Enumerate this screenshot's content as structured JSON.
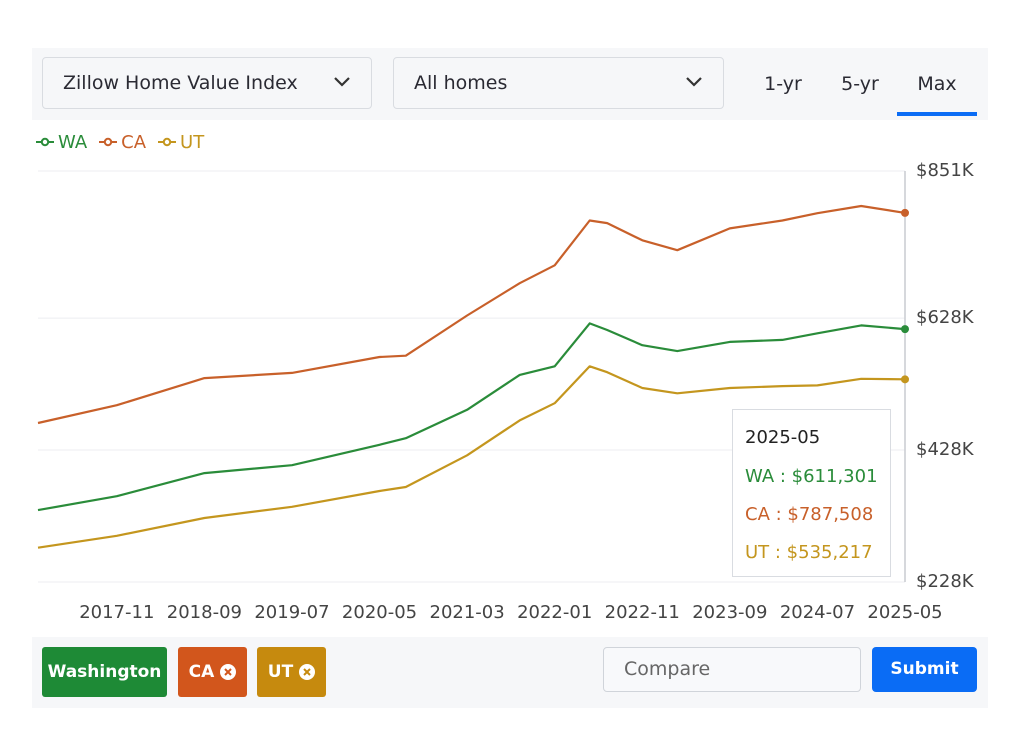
{
  "controls": {
    "metric": "Zillow Home Value Index",
    "home_type": "All homes",
    "ranges": [
      "1-yr",
      "5-yr",
      "Max"
    ],
    "active_range": "Max"
  },
  "chart_data": {
    "type": "line",
    "x": [
      "2017-02",
      "2017-11",
      "2018-09",
      "2019-07",
      "2020-05",
      "2020-08",
      "2021-03",
      "2021-09",
      "2022-01",
      "2022-05",
      "2022-07",
      "2022-11",
      "2023-03",
      "2023-09",
      "2024-03",
      "2024-07",
      "2024-12",
      "2025-05"
    ],
    "series": [
      {
        "name": "WA",
        "color": "#2a8c3a",
        "values": [
          337000,
          358000,
          393000,
          405000,
          436000,
          446000,
          489000,
          542000,
          555000,
          620000,
          610000,
          587000,
          578000,
          592000,
          595000,
          605000,
          617000,
          611301
        ]
      },
      {
        "name": "CA",
        "color": "#c8602a",
        "values": [
          469000,
          496000,
          537000,
          545000,
          569000,
          571000,
          632000,
          681000,
          708000,
          776000,
          772000,
          746000,
          731000,
          764000,
          776000,
          787000,
          798000,
          787508
        ]
      },
      {
        "name": "UT",
        "color": "#c4961e",
        "values": [
          280000,
          298000,
          325000,
          342000,
          366000,
          372000,
          420000,
          473000,
          499000,
          555000,
          546000,
          522000,
          514000,
          522000,
          525000,
          526000,
          536000,
          535217
        ]
      }
    ],
    "ylim": [
      228000,
      851000
    ],
    "yticks": [
      {
        "value": 228000,
        "label": "$228K"
      },
      {
        "value": 428000,
        "label": "$428K"
      },
      {
        "value": 628000,
        "label": "$628K"
      },
      {
        "value": 851000,
        "label": "$851K"
      }
    ],
    "xticks": [
      "2017-11",
      "2018-09",
      "2019-07",
      "2020-05",
      "2021-03",
      "2022-01",
      "2022-11",
      "2023-09",
      "2024-07",
      "2025-05"
    ],
    "grid": true,
    "tooltip": {
      "title": "2025-05",
      "entries": [
        "WA : $611,301",
        "CA : $787,508",
        "UT : $535,217"
      ]
    }
  },
  "chips": [
    {
      "label": "Washington",
      "color": "#1e8a36"
    },
    {
      "label": "CA",
      "color": "#d2561c"
    },
    {
      "label": "UT",
      "color": "#c68a0e"
    }
  ],
  "compare_placeholder": "Compare",
  "submit": "Submit"
}
